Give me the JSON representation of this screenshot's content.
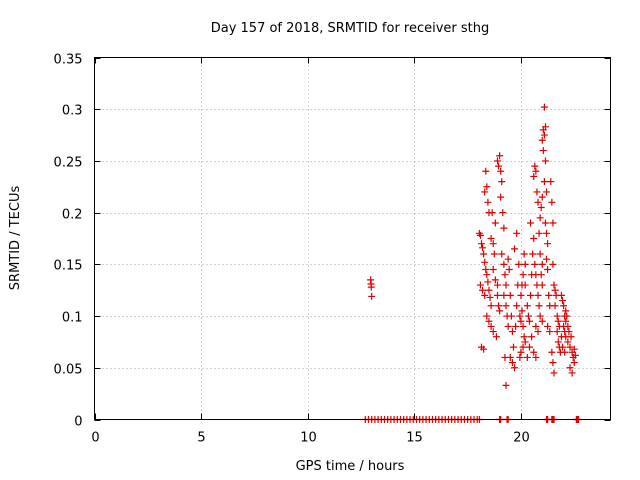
{
  "chart_data": {
    "type": "scatter",
    "title": "Day 157 of 2018, SRMTID for receiver sthg",
    "xlabel": "GPS time / hours",
    "ylabel": "SRMTID / TECUs",
    "xlim": [
      0,
      24.2
    ],
    "ylim": [
      0,
      0.35
    ],
    "xticks": [
      0,
      5,
      10,
      15,
      20
    ],
    "xtick_labels": [
      "0",
      "5",
      "10",
      "15",
      "20"
    ],
    "yticks": [
      0,
      0.05,
      0.1,
      0.15,
      0.2,
      0.25,
      0.3,
      0.35
    ],
    "ytick_labels": [
      "0",
      "0.05",
      "0.1",
      "0.15",
      "0.2",
      "0.25",
      "0.3",
      "0.35"
    ],
    "grid": true,
    "marker": "+",
    "series_color": "#e00000",
    "series": [
      {
        "name": "SRMTID",
        "points": [
          [
            12.95,
            0.135
          ],
          [
            12.98,
            0.128
          ],
          [
            13.0,
            0.119
          ],
          [
            12.97,
            0.131
          ],
          [
            18.05,
            0.18
          ],
          [
            18.1,
            0.178
          ],
          [
            18.15,
            0.17
          ],
          [
            18.2,
            0.166
          ],
          [
            18.25,
            0.16
          ],
          [
            18.1,
            0.13
          ],
          [
            18.2,
            0.125
          ],
          [
            18.3,
            0.12
          ],
          [
            18.15,
            0.07
          ],
          [
            18.25,
            0.068
          ],
          [
            18.3,
            0.22
          ],
          [
            18.35,
            0.24
          ],
          [
            18.4,
            0.225
          ],
          [
            18.45,
            0.21
          ],
          [
            18.5,
            0.2
          ],
          [
            18.3,
            0.152
          ],
          [
            18.35,
            0.145
          ],
          [
            18.4,
            0.14
          ],
          [
            18.45,
            0.133
          ],
          [
            18.5,
            0.125
          ],
          [
            18.55,
            0.118
          ],
          [
            18.6,
            0.11
          ],
          [
            18.4,
            0.1
          ],
          [
            18.5,
            0.095
          ],
          [
            18.6,
            0.09
          ],
          [
            18.7,
            0.085
          ],
          [
            18.6,
            0.175
          ],
          [
            18.7,
            0.17
          ],
          [
            18.75,
            0.16
          ],
          [
            18.8,
            0.19
          ],
          [
            18.65,
            0.2
          ],
          [
            18.7,
            0.145
          ],
          [
            18.8,
            0.135
          ],
          [
            18.9,
            0.13
          ],
          [
            18.9,
            0.12
          ],
          [
            18.95,
            0.11
          ],
          [
            19.0,
            0.105
          ],
          [
            18.85,
            0.08
          ],
          [
            18.9,
            0.25
          ],
          [
            18.95,
            0.245
          ],
          [
            19.0,
            0.255
          ],
          [
            19.05,
            0.24
          ],
          [
            19.1,
            0.23
          ],
          [
            19.05,
            0.215
          ],
          [
            19.15,
            0.2
          ],
          [
            19.2,
            0.185
          ],
          [
            19.1,
            0.16
          ],
          [
            19.2,
            0.15
          ],
          [
            19.25,
            0.14
          ],
          [
            19.3,
            0.13
          ],
          [
            19.2,
            0.12
          ],
          [
            19.3,
            0.11
          ],
          [
            19.35,
            0.1
          ],
          [
            19.4,
            0.09
          ],
          [
            19.25,
            0.06
          ],
          [
            19.3,
            0.033
          ],
          [
            19.4,
            0.155
          ],
          [
            19.45,
            0.145
          ],
          [
            19.5,
            0.12
          ],
          [
            19.55,
            0.1
          ],
          [
            19.6,
            0.085
          ],
          [
            19.5,
            0.06
          ],
          [
            19.6,
            0.055
          ],
          [
            19.7,
            0.05
          ],
          [
            19.65,
            0.07
          ],
          [
            19.75,
            0.09
          ],
          [
            19.8,
            0.11
          ],
          [
            19.85,
            0.13
          ],
          [
            19.9,
            0.15
          ],
          [
            19.7,
            0.165
          ],
          [
            19.8,
            0.18
          ],
          [
            19.95,
            0.1
          ],
          [
            20.0,
            0.095
          ],
          [
            20.05,
            0.105
          ],
          [
            20.1,
            0.09
          ],
          [
            20.15,
            0.08
          ],
          [
            20.2,
            0.075
          ],
          [
            20.0,
            0.12
          ],
          [
            20.05,
            0.13
          ],
          [
            20.1,
            0.14
          ],
          [
            19.95,
            0.06
          ],
          [
            20.0,
            0.065
          ],
          [
            20.1,
            0.07
          ],
          [
            20.15,
            0.16
          ],
          [
            20.2,
            0.15
          ],
          [
            20.2,
            0.13
          ],
          [
            20.3,
            0.11
          ],
          [
            20.35,
            0.1
          ],
          [
            20.4,
            0.095
          ],
          [
            20.45,
            0.12
          ],
          [
            20.5,
            0.14
          ],
          [
            20.3,
            0.06
          ],
          [
            20.4,
            0.07
          ],
          [
            20.5,
            0.08
          ],
          [
            20.55,
            0.16
          ],
          [
            20.6,
            0.175
          ],
          [
            20.45,
            0.19
          ],
          [
            20.6,
            0.235
          ],
          [
            20.65,
            0.245
          ],
          [
            20.7,
            0.24
          ],
          [
            20.75,
            0.22
          ],
          [
            20.8,
            0.21
          ],
          [
            20.65,
            0.15
          ],
          [
            20.7,
            0.14
          ],
          [
            20.75,
            0.13
          ],
          [
            20.8,
            0.12
          ],
          [
            20.85,
            0.11
          ],
          [
            20.7,
            0.09
          ],
          [
            20.8,
            0.085
          ],
          [
            20.6,
            0.065
          ],
          [
            20.7,
            0.06
          ],
          [
            20.85,
            0.18
          ],
          [
            20.9,
            0.195
          ],
          [
            20.95,
            0.205
          ],
          [
            21.0,
            0.215
          ],
          [
            20.9,
            0.16
          ],
          [
            21.0,
            0.15
          ],
          [
            20.95,
            0.14
          ],
          [
            21.0,
            0.13
          ],
          [
            20.9,
            0.1
          ],
          [
            21.0,
            0.095
          ],
          [
            21.0,
            0.27
          ],
          [
            21.05,
            0.28
          ],
          [
            21.1,
            0.275
          ],
          [
            21.15,
            0.283
          ],
          [
            21.05,
            0.26
          ],
          [
            21.1,
            0.302
          ],
          [
            21.15,
            0.25
          ],
          [
            21.1,
            0.23
          ],
          [
            21.2,
            0.22
          ],
          [
            21.15,
            0.19
          ],
          [
            21.2,
            0.18
          ],
          [
            21.25,
            0.17
          ],
          [
            21.2,
            0.155
          ],
          [
            21.25,
            0.145
          ],
          [
            21.3,
            0.12
          ],
          [
            21.35,
            0.11
          ],
          [
            21.25,
            0.09
          ],
          [
            21.35,
            0.085
          ],
          [
            21.4,
            0.23
          ],
          [
            21.45,
            0.21
          ],
          [
            21.5,
            0.19
          ],
          [
            21.5,
            0.15
          ],
          [
            21.55,
            0.13
          ],
          [
            21.6,
            0.11
          ],
          [
            21.45,
            0.065
          ],
          [
            21.5,
            0.055
          ],
          [
            21.55,
            0.045
          ],
          [
            21.6,
            0.125
          ],
          [
            21.65,
            0.12
          ],
          [
            21.7,
            0.1
          ],
          [
            21.75,
            0.095
          ],
          [
            21.8,
            0.09
          ],
          [
            21.7,
            0.085
          ],
          [
            21.75,
            0.075
          ],
          [
            21.8,
            0.07
          ],
          [
            21.85,
            0.065
          ],
          [
            21.9,
            0.08
          ],
          [
            21.9,
            0.12
          ],
          [
            21.95,
            0.115
          ],
          [
            22.0,
            0.11
          ],
          [
            22.05,
            0.1
          ],
          [
            22.1,
            0.095
          ],
          [
            22.0,
            0.09
          ],
          [
            22.05,
            0.085
          ],
          [
            22.1,
            0.08
          ],
          [
            21.95,
            0.07
          ],
          [
            22.05,
            0.065
          ],
          [
            22.1,
            0.105
          ],
          [
            22.15,
            0.1
          ],
          [
            22.2,
            0.09
          ],
          [
            22.25,
            0.085
          ],
          [
            22.2,
            0.075
          ],
          [
            22.3,
            0.07
          ],
          [
            22.35,
            0.08
          ],
          [
            22.4,
            0.065
          ],
          [
            22.45,
            0.06
          ],
          [
            22.5,
            0.068
          ],
          [
            22.3,
            0.05
          ],
          [
            22.4,
            0.045
          ],
          [
            22.5,
            0.055
          ],
          [
            22.55,
            0.062
          ],
          [
            12.7,
            0
          ],
          [
            12.85,
            0
          ],
          [
            13.0,
            0
          ],
          [
            13.15,
            0
          ],
          [
            13.3,
            0
          ],
          [
            13.45,
            0
          ],
          [
            13.6,
            0
          ],
          [
            13.75,
            0
          ],
          [
            13.9,
            0
          ],
          [
            14.05,
            0
          ],
          [
            14.2,
            0
          ],
          [
            14.35,
            0
          ],
          [
            14.5,
            0
          ],
          [
            14.65,
            0
          ],
          [
            14.8,
            0
          ],
          [
            14.95,
            0
          ],
          [
            15.1,
            0
          ],
          [
            15.25,
            0
          ],
          [
            15.4,
            0
          ],
          [
            15.55,
            0
          ],
          [
            15.7,
            0
          ],
          [
            15.85,
            0
          ],
          [
            16.0,
            0
          ],
          [
            16.15,
            0
          ],
          [
            16.3,
            0
          ],
          [
            16.45,
            0
          ],
          [
            16.6,
            0
          ],
          [
            16.75,
            0
          ],
          [
            16.9,
            0
          ],
          [
            17.05,
            0
          ],
          [
            17.2,
            0
          ],
          [
            17.35,
            0
          ],
          [
            17.5,
            0
          ],
          [
            17.65,
            0
          ],
          [
            17.8,
            0
          ],
          [
            17.95,
            0
          ],
          [
            18.05,
            0
          ],
          [
            19.0,
            0
          ],
          [
            19.05,
            0
          ],
          [
            19.35,
            0
          ],
          [
            19.4,
            0
          ],
          [
            21.2,
            0
          ],
          [
            21.25,
            0
          ],
          [
            21.45,
            0
          ],
          [
            21.5,
            0
          ],
          [
            21.55,
            0
          ],
          [
            22.6,
            0
          ],
          [
            22.65,
            0
          ],
          [
            22.7,
            0
          ]
        ]
      }
    ]
  }
}
